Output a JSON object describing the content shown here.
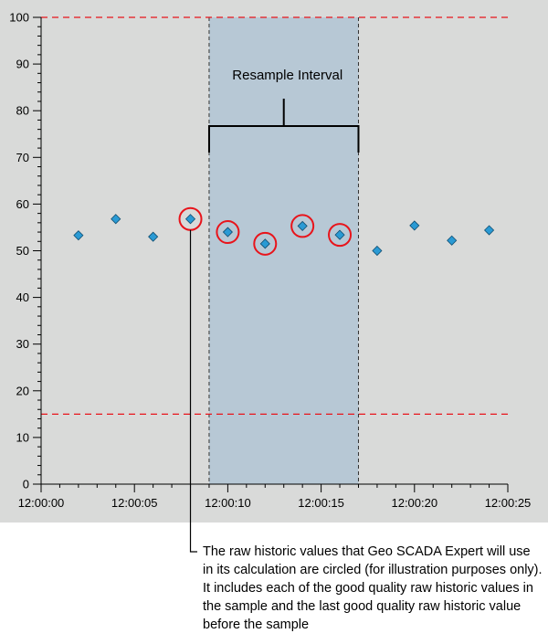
{
  "chart_data": {
    "type": "scatter",
    "title": "",
    "xlabel": "",
    "ylabel": "",
    "xlim": [
      0,
      25
    ],
    "ylim": [
      0,
      100
    ],
    "x_ticks": [
      0,
      5,
      10,
      15,
      20,
      25
    ],
    "x_tick_labels": [
      "12:00:00",
      "12:00:05",
      "12:00:10",
      "12:00:15",
      "12:00:20",
      "12:00:25"
    ],
    "y_ticks": [
      0,
      10,
      20,
      30,
      40,
      50,
      60,
      70,
      80,
      90,
      100
    ],
    "y_tick_labels": [
      "0",
      "10",
      "20",
      "30",
      "40",
      "50",
      "60",
      "70",
      "80",
      "90",
      "100"
    ],
    "limit_lines": [
      100,
      15
    ],
    "interval": {
      "start": 9,
      "end": 17,
      "label": "Resample Interval"
    },
    "series": [
      {
        "name": "raw historic values",
        "x": [
          2,
          4,
          6,
          8,
          10,
          12,
          14,
          16,
          18,
          20,
          22,
          24
        ],
        "values": [
          53.3,
          56.8,
          53.0,
          56.8,
          54.0,
          51.5,
          55.3,
          53.4,
          50.0,
          55.4,
          52.2,
          54.4
        ],
        "circled": [
          false,
          false,
          false,
          true,
          true,
          true,
          true,
          true,
          false,
          false,
          false,
          false
        ]
      }
    ],
    "colors": {
      "background": "#d9dad9",
      "interval_fill": "#b7c8d5",
      "marker": "#2a9ad4",
      "marker_edge": "#0f4d70",
      "circle": "#e8141b",
      "limit_line": "#e8141b"
    }
  },
  "caption": "The raw historic values that Geo SCADA Expert will use in its calculation are circled (for illustration purposes only). It includes each of the good quality raw historic values in the sample and the last good quality raw historic value before the sample"
}
